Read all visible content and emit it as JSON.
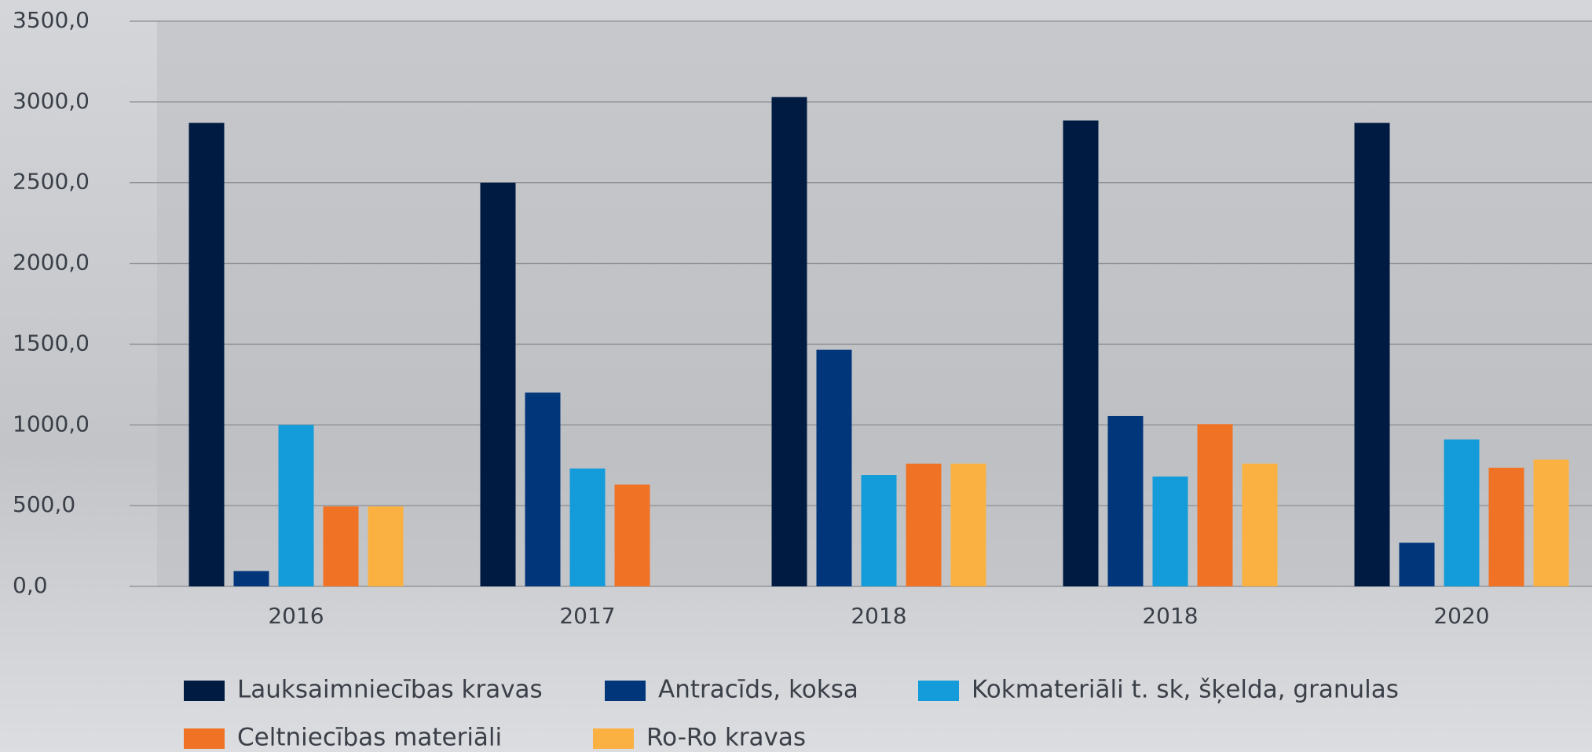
{
  "chart_data": {
    "type": "bar",
    "categories": [
      "2016",
      "2017",
      "2018",
      "2018",
      "2020"
    ],
    "series": [
      {
        "name": "Lauksaimniecības kravas",
        "color": "#001b41",
        "values": [
          2870,
          2500,
          3030,
          2885,
          2870
        ]
      },
      {
        "name": "Antracīds, koksa",
        "color": "#01367b",
        "values": [
          95,
          1200,
          1465,
          1055,
          270
        ]
      },
      {
        "name": "Kokmateriāli t. sk, šķelda, granulas",
        "color": "#139cd9",
        "values": [
          1000,
          730,
          690,
          680,
          910
        ]
      },
      {
        "name": "Celtniecības materiāli",
        "color": "#f07325",
        "values": [
          495,
          630,
          760,
          1005,
          735
        ]
      },
      {
        "name": "Ro-Ro kravas",
        "color": "#fbb142",
        "values": [
          495,
          null,
          760,
          760,
          785
        ]
      }
    ],
    "ylim": [
      0,
      3500
    ],
    "yticks": [
      {
        "value": 0,
        "label": "0,0"
      },
      {
        "value": 500,
        "label": "500,0"
      },
      {
        "value": 1000,
        "label": "1000,0"
      },
      {
        "value": 1500,
        "label": "1500,0"
      },
      {
        "value": 2000,
        "label": "2000,0"
      },
      {
        "value": 2500,
        "label": "2500,0"
      },
      {
        "value": 3000,
        "label": "3000,0"
      },
      {
        "value": 3500,
        "label": "3500,0"
      }
    ],
    "grid": true,
    "legend": "bottom"
  }
}
